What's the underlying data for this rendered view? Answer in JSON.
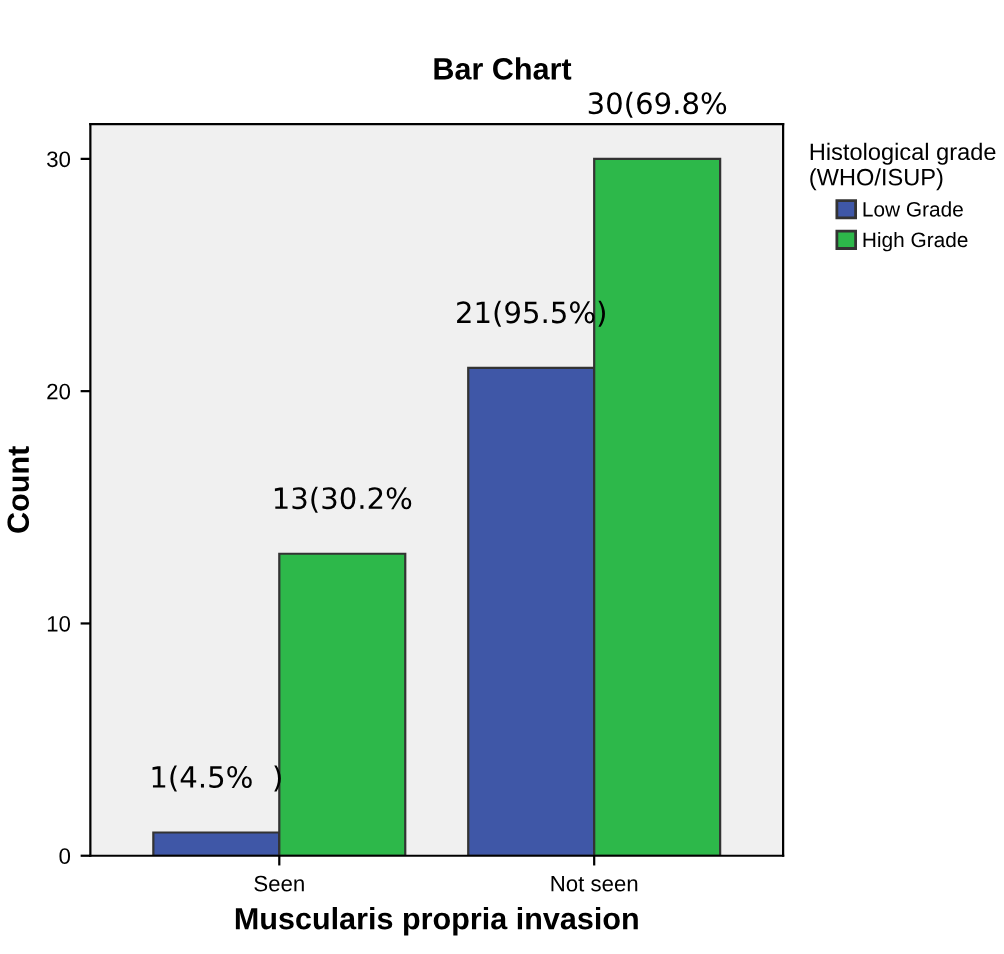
{
  "chart_data": {
    "type": "bar",
    "title": "Bar Chart",
    "xlabel": "Muscularis propria invasion",
    "ylabel": "Count",
    "legend_title": "Histological grade\n(WHO/ISUP)",
    "categories": [
      "Seen",
      "Not seen"
    ],
    "series": [
      {
        "name": "Low Grade",
        "color": "#3f57a7",
        "values": [
          1,
          21
        ],
        "value_labels": [
          "1(4.5%  )",
          "21(95.5%)"
        ]
      },
      {
        "name": "High Grade",
        "color": "#2db84a",
        "values": [
          13,
          30
        ],
        "value_labels": [
          "13(30.2%",
          "30(69.8%"
        ]
      }
    ],
    "ylim": [
      0,
      31.5
    ],
    "yticks": [
      0,
      10,
      20,
      30
    ],
    "grid": false,
    "legend": "top right"
  }
}
